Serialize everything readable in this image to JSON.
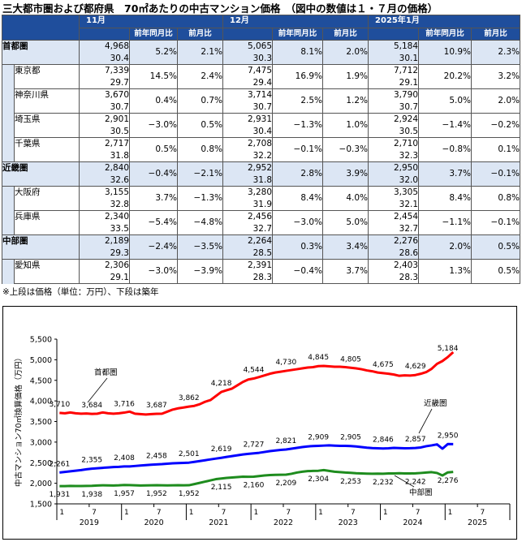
{
  "title": "三大都市圏および都府県　70㎡あたりの中古マンション価格　（図中の数値は１・７月の価格）",
  "table": {
    "period_headers": [
      "11月",
      "12月",
      "2025年1月"
    ],
    "sub_headers": [
      "前年同月比",
      "前月比"
    ],
    "rows": [
      {
        "name": "首都圏",
        "type": "region",
        "cells": [
          [
            "4,968",
            "30.4",
            "5.2%",
            "2.1%"
          ],
          [
            "5,065",
            "30.3",
            "8.1%",
            "2.0%"
          ],
          [
            "5,184",
            "30.1",
            "10.9%",
            "2.3%"
          ]
        ]
      },
      {
        "name": "東京都",
        "type": "pref",
        "cells": [
          [
            "7,339",
            "29.7",
            "14.5%",
            "2.4%"
          ],
          [
            "7,475",
            "29.4",
            "16.9%",
            "1.9%"
          ],
          [
            "7,712",
            "29.1",
            "20.2%",
            "3.2%"
          ]
        ]
      },
      {
        "name": "神奈川県",
        "type": "pref",
        "cells": [
          [
            "3,670",
            "30.7",
            "0.4%",
            "0.7%"
          ],
          [
            "3,714",
            "30.7",
            "2.5%",
            "1.2%"
          ],
          [
            "3,790",
            "30.7",
            "5.0%",
            "2.0%"
          ]
        ]
      },
      {
        "name": "埼玉県",
        "type": "pref",
        "cells": [
          [
            "2,901",
            "30.5",
            "−3.0%",
            "0.5%"
          ],
          [
            "2,931",
            "30.4",
            "−1.3%",
            "1.0%"
          ],
          [
            "2,924",
            "30.5",
            "−1.4%",
            "−0.2%"
          ]
        ]
      },
      {
        "name": "千葉県",
        "type": "pref",
        "cells": [
          [
            "2,717",
            "31.8",
            "0.5%",
            "0.8%"
          ],
          [
            "2,708",
            "32.2",
            "−0.1%",
            "−0.3%"
          ],
          [
            "2,710",
            "32.3",
            "−0.8%",
            "0.1%"
          ]
        ]
      },
      {
        "name": "近畿圏",
        "type": "region",
        "cells": [
          [
            "2,840",
            "32.6",
            "−0.4%",
            "−2.1%"
          ],
          [
            "2,952",
            "31.8",
            "2.8%",
            "3.9%"
          ],
          [
            "2,950",
            "32.0",
            "3.7%",
            "−0.1%"
          ]
        ]
      },
      {
        "name": "大阪府",
        "type": "pref",
        "cells": [
          [
            "3,155",
            "32.8",
            "3.7%",
            "−1.3%"
          ],
          [
            "3,280",
            "31.9",
            "8.4%",
            "4.0%"
          ],
          [
            "3,305",
            "32.1",
            "8.4%",
            "0.8%"
          ]
        ]
      },
      {
        "name": "兵庫県",
        "type": "pref",
        "cells": [
          [
            "2,340",
            "33.5",
            "−5.4%",
            "−4.8%"
          ],
          [
            "2,456",
            "32.7",
            "−3.0%",
            "5.0%"
          ],
          [
            "2,454",
            "32.7",
            "−1.1%",
            "−0.1%"
          ]
        ]
      },
      {
        "name": "中部圏",
        "type": "region",
        "cells": [
          [
            "2,189",
            "29.3",
            "−2.4%",
            "−3.5%"
          ],
          [
            "2,264",
            "28.5",
            "0.3%",
            "3.4%"
          ],
          [
            "2,276",
            "28.6",
            "2.0%",
            "0.5%"
          ]
        ]
      },
      {
        "name": "愛知県",
        "type": "pref",
        "cells": [
          [
            "2,306",
            "29.1",
            "−3.0%",
            "−3.9%"
          ],
          [
            "2,391",
            "28.3",
            "−0.4%",
            "3.7%"
          ],
          [
            "2,403",
            "28.3",
            "1.3%",
            "0.5%"
          ]
        ]
      }
    ]
  },
  "note": "※上段は価格（単位：万円）、下段は築年",
  "chart_data": {
    "type": "line",
    "ylabel": "中古マンション70㎡換算価格（万円）",
    "ylim": [
      1500,
      5500
    ],
    "yticks": [
      "1,500",
      "2,000",
      "2,500",
      "3,000",
      "3,500",
      "4,000",
      "4,500",
      "5,000",
      "5,500"
    ],
    "x_month_ticks": [
      "1",
      "7",
      "1",
      "7",
      "1",
      "7",
      "1",
      "7",
      "1",
      "7",
      "1",
      "7",
      "1",
      "7"
    ],
    "x_years": [
      "2019",
      "2020",
      "2021",
      "2022",
      "2023",
      "2024",
      "2025"
    ],
    "x_range": [
      "2019-01",
      "2025-01"
    ],
    "series": [
      {
        "name": "首都圏",
        "color": "#ff0000",
        "values": [
          3710,
          3700,
          3720,
          3700,
          3690,
          3695,
          3684,
          3690,
          3720,
          3700,
          3690,
          3700,
          3716,
          3740,
          3690,
          3680,
          3670,
          3680,
          3687,
          3690,
          3740,
          3790,
          3820,
          3840,
          3862,
          3880,
          3920,
          3980,
          4020,
          4120,
          4218,
          4260,
          4300,
          4380,
          4460,
          4520,
          4544,
          4580,
          4620,
          4660,
          4690,
          4710,
          4730,
          4750,
          4770,
          4790,
          4810,
          4820,
          4845,
          4850,
          4840,
          4830,
          4830,
          4820,
          4805,
          4790,
          4770,
          4740,
          4720,
          4690,
          4675,
          4660,
          4640,
          4610,
          4620,
          4615,
          4629,
          4660,
          4700,
          4780,
          4900,
          4968,
          5065,
          5184
        ],
        "labels": [
          [
            "2019-01",
            "3,710"
          ],
          [
            "2019-07",
            "3,684"
          ],
          [
            "2020-01",
            "3,716"
          ],
          [
            "2020-07",
            "3,687"
          ],
          [
            "2021-01",
            "3,862"
          ],
          [
            "2021-07",
            "4,218"
          ],
          [
            "2022-01",
            "4,544"
          ],
          [
            "2022-07",
            "4,730"
          ],
          [
            "2023-01",
            "4,845"
          ],
          [
            "2023-07",
            "4,805"
          ],
          [
            "2024-01",
            "4,675"
          ],
          [
            "2024-07",
            "4,629"
          ],
          [
            "2025-01",
            "5,184"
          ]
        ]
      },
      {
        "name": "近畿圏",
        "color": "#0000ff",
        "values": [
          2261,
          2275,
          2290,
          2305,
          2320,
          2340,
          2355,
          2365,
          2375,
          2385,
          2395,
          2400,
          2408,
          2410,
          2420,
          2430,
          2440,
          2450,
          2458,
          2465,
          2475,
          2485,
          2490,
          2495,
          2501,
          2520,
          2540,
          2560,
          2580,
          2600,
          2619,
          2640,
          2660,
          2680,
          2700,
          2715,
          2727,
          2740,
          2760,
          2780,
          2795,
          2810,
          2821,
          2840,
          2860,
          2880,
          2895,
          2905,
          2909,
          2915,
          2920,
          2915,
          2910,
          2908,
          2905,
          2895,
          2880,
          2865,
          2855,
          2850,
          2846,
          2850,
          2860,
          2855,
          2850,
          2852,
          2857,
          2870,
          2900,
          2920,
          2945,
          2840,
          2952,
          2950
        ],
        "labels": [
          [
            "2019-01",
            "2,261"
          ],
          [
            "2019-07",
            "2,355"
          ],
          [
            "2020-01",
            "2,408"
          ],
          [
            "2020-07",
            "2,458"
          ],
          [
            "2021-01",
            "2,501"
          ],
          [
            "2021-07",
            "2,619"
          ],
          [
            "2022-01",
            "2,727"
          ],
          [
            "2022-07",
            "2,821"
          ],
          [
            "2023-01",
            "2,909"
          ],
          [
            "2023-07",
            "2,905"
          ],
          [
            "2024-01",
            "2,846"
          ],
          [
            "2024-07",
            "2,857"
          ],
          [
            "2025-01",
            "2,950"
          ]
        ]
      },
      {
        "name": "中部圏",
        "color": "#1e8c1e",
        "values": [
          1931,
          1930,
          1935,
          1934,
          1933,
          1936,
          1938,
          1945,
          1950,
          1948,
          1946,
          1950,
          1957,
          1955,
          1950,
          1945,
          1948,
          1950,
          1952,
          1950,
          1948,
          1950,
          1952,
          1950,
          1952,
          1980,
          2010,
          2040,
          2070,
          2100,
          2115,
          2130,
          2140,
          2150,
          2160,
          2158,
          2160,
          2175,
          2190,
          2200,
          2205,
          2208,
          2209,
          2230,
          2260,
          2280,
          2295,
          2300,
          2304,
          2320,
          2300,
          2280,
          2270,
          2260,
          2253,
          2245,
          2240,
          2235,
          2232,
          2234,
          2232,
          2238,
          2240,
          2245,
          2240,
          2238,
          2242,
          2250,
          2260,
          2270,
          2250,
          2189,
          2264,
          2276
        ],
        "labels": [
          [
            "2019-01",
            "1,931"
          ],
          [
            "2019-07",
            "1,938"
          ],
          [
            "2020-01",
            "1,957"
          ],
          [
            "2020-07",
            "1,952"
          ],
          [
            "2021-01",
            "1,952"
          ],
          [
            "2021-07",
            "2,115"
          ],
          [
            "2022-01",
            "2,160"
          ],
          [
            "2022-07",
            "2,209"
          ],
          [
            "2023-01",
            "2,304"
          ],
          [
            "2023-07",
            "2,253"
          ],
          [
            "2024-01",
            "2,232"
          ],
          [
            "2024-07",
            "2,242"
          ],
          [
            "2025-01",
            "2,276"
          ]
        ]
      }
    ]
  }
}
